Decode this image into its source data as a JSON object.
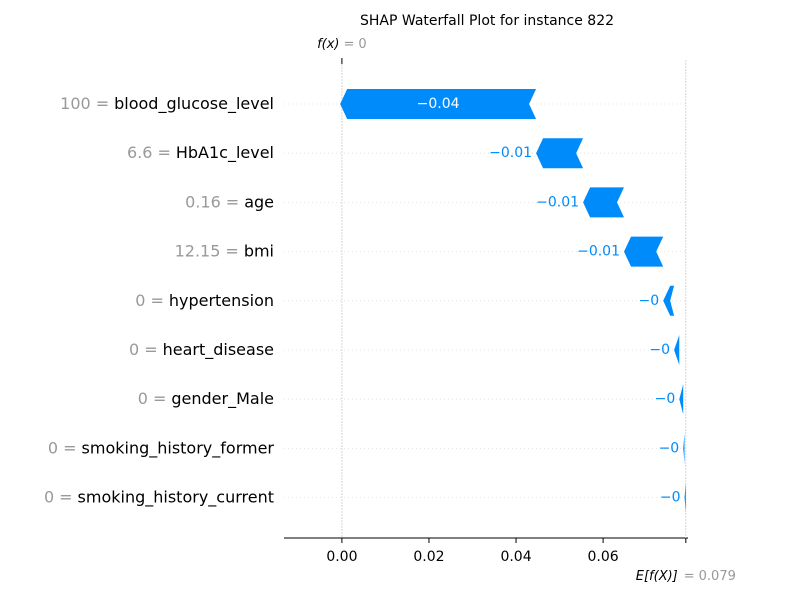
{
  "chart_data": {
    "type": "waterfall",
    "title": "SHAP Waterfall Plot for instance 822",
    "categories": [
      "blood_glucose_level",
      "HbA1c_level",
      "age",
      "bmi",
      "hypertension",
      "heart_disease",
      "gender_Male",
      "smoking_history_former",
      "smoking_history_current"
    ],
    "feature_values": [
      "100",
      "6.6",
      "0.16",
      "12.15",
      "0",
      "0",
      "0",
      "0",
      "0"
    ],
    "separator": "=",
    "values": [
      -0.045,
      -0.0108,
      -0.0094,
      -0.009,
      -0.0025,
      -0.0012,
      -0.0009,
      -0.0003,
      -0.0003
    ],
    "value_labels": [
      "−0.04",
      "−0.01",
      "−0.01",
      "−0.01",
      "−0",
      "−0",
      "−0",
      "−0",
      "−0"
    ],
    "color": "#008bfb",
    "fx_label": "f(x)",
    "fx": 0,
    "ex_label": "E[f(X)]",
    "base_value": 0.079,
    "xlim": [
      -0.0133,
      0.0795
    ],
    "xticks": [
      {
        "value": 0,
        "label": "0.00"
      },
      {
        "value": 0.02,
        "label": "0.02"
      },
      {
        "value": 0.04,
        "label": "0.04"
      },
      {
        "value": 0.06,
        "label": "0.06"
      }
    ]
  }
}
